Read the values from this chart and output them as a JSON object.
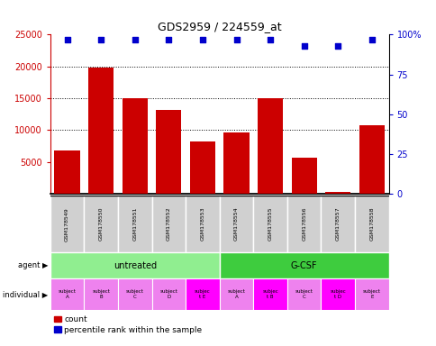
{
  "title": "GDS2959 / 224559_at",
  "samples": [
    "GSM178549",
    "GSM178550",
    "GSM178551",
    "GSM178552",
    "GSM178553",
    "GSM178554",
    "GSM178555",
    "GSM178556",
    "GSM178557",
    "GSM178558"
  ],
  "counts": [
    6800,
    19800,
    15000,
    13200,
    8200,
    9700,
    15000,
    5700,
    300,
    10800
  ],
  "percentile_ranks": [
    97,
    97,
    97,
    97,
    97,
    97,
    97,
    93,
    93,
    97
  ],
  "ylim": [
    0,
    25000
  ],
  "yticks_left": [
    5000,
    10000,
    15000,
    20000,
    25000
  ],
  "yticks_right_pct": [
    0,
    25,
    50,
    75,
    100
  ],
  "agent_groups": [
    {
      "label": "untreated",
      "start": 0,
      "end": 5,
      "color": "#90EE90"
    },
    {
      "label": "G-CSF",
      "start": 5,
      "end": 10,
      "color": "#3ECC3E"
    }
  ],
  "individuals": [
    {
      "label": "subject\nA",
      "idx": 0,
      "color": "#EE82EE"
    },
    {
      "label": "subject\nB",
      "idx": 1,
      "color": "#EE82EE"
    },
    {
      "label": "subject\nC",
      "idx": 2,
      "color": "#EE82EE"
    },
    {
      "label": "subject\nD",
      "idx": 3,
      "color": "#EE82EE"
    },
    {
      "label": "subjec\nt E",
      "idx": 4,
      "color": "#FF00FF"
    },
    {
      "label": "subject\nA",
      "idx": 5,
      "color": "#EE82EE"
    },
    {
      "label": "subjec\nt B",
      "idx": 6,
      "color": "#FF00FF"
    },
    {
      "label": "subject\nC",
      "idx": 7,
      "color": "#EE82EE"
    },
    {
      "label": "subjec\nt D",
      "idx": 8,
      "color": "#FF00FF"
    },
    {
      "label": "subject\nE",
      "idx": 9,
      "color": "#EE82EE"
    }
  ],
  "bar_color": "#CC0000",
  "dot_color": "#0000CC",
  "bar_width": 0.75,
  "sample_box_color": "#D0D0D0",
  "legend_red": "count",
  "legend_blue": "percentile rank within the sample"
}
